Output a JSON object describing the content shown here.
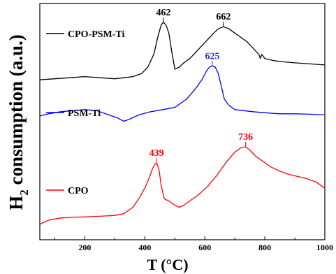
{
  "chart_data": {
    "type": "line",
    "xlabel": "T (°C)",
    "ylabel_main": "H",
    "ylabel_sub": "2",
    "ylabel_rest": " consumption (a.u.)",
    "xlim": [
      50,
      1000
    ],
    "xticks": [
      200,
      400,
      600,
      800,
      1000
    ],
    "xtick_labels": [
      "200",
      "400",
      "600",
      "800",
      "1000"
    ],
    "ylim": [
      0,
      100
    ],
    "series": [
      {
        "name": "CPO-PSM-Ti",
        "color": "#000000",
        "x": [
          50,
          100,
          150,
          200,
          250,
          300,
          330,
          360,
          390,
          410,
          430,
          445,
          455,
          462,
          470,
          480,
          490,
          500,
          515,
          530,
          550,
          570,
          590,
          610,
          630,
          645,
          662,
          680,
          700,
          720,
          740,
          760,
          780,
          785,
          790,
          800,
          830,
          860,
          900,
          950,
          1000
        ],
        "y": [
          70,
          70.5,
          71,
          71.5,
          71,
          70.5,
          71,
          71.5,
          73,
          76,
          82,
          91,
          96,
          97,
          96,
          92,
          83,
          75,
          76,
          78,
          80,
          83,
          86,
          89,
          92,
          94,
          95,
          94,
          92,
          90,
          88,
          85,
          82,
          80,
          82,
          80,
          79,
          78.5,
          78,
          77.5,
          77
        ]
      },
      {
        "name": "PSM-Ti",
        "color": "#0000ff",
        "x": [
          50,
          80,
          120,
          160,
          200,
          240,
          280,
          310,
          330,
          350,
          380,
          420,
          460,
          500,
          540,
          570,
          590,
          605,
          615,
          625,
          635,
          645,
          655,
          665,
          680,
          700,
          730,
          760,
          800,
          850,
          900,
          950,
          1000
        ],
        "y": [
          53,
          54,
          55,
          55.5,
          56,
          55.5,
          53.5,
          52,
          50.5,
          51.5,
          53.5,
          55,
          56,
          57,
          61,
          66,
          70,
          74,
          76,
          76.5,
          76,
          73,
          67,
          61,
          58,
          56,
          55.5,
          55,
          54.5,
          54,
          54,
          53.8,
          53.5
        ]
      },
      {
        "name": "CPO",
        "color": "#ff0000",
        "x": [
          50,
          80,
          120,
          160,
          200,
          250,
          300,
          330,
          360,
          380,
          400,
          415,
          425,
          432,
          439,
          447,
          455,
          465,
          480,
          500,
          515,
          530,
          550,
          580,
          610,
          640,
          670,
          700,
          720,
          736,
          750,
          770,
          790,
          820,
          850,
          880,
          910,
          940,
          970,
          1000
        ],
        "y": [
          2,
          4,
          5,
          5.3,
          5.5,
          5.8,
          6.2,
          7,
          10,
          14,
          19,
          24,
          28,
          30,
          31,
          28,
          20,
          14,
          13,
          11,
          10,
          11,
          13,
          16,
          20,
          25,
          31,
          36,
          38,
          38.5,
          37,
          34,
          32,
          29,
          27,
          25.5,
          24.5,
          23.5,
          22,
          19
        ]
      }
    ],
    "legend": [
      {
        "label": "CPO-PSM-Ti",
        "series": 0
      },
      {
        "label": "PSM-Ti",
        "series": 1
      },
      {
        "label": "CPO",
        "series": 2
      }
    ],
    "annotations": [
      {
        "text": "462",
        "x": 462,
        "y": 97,
        "color": "#000000"
      },
      {
        "text": "662",
        "x": 662,
        "y": 95,
        "color": "#000000"
      },
      {
        "text": "625",
        "x": 625,
        "y": 76.5,
        "color": "#3333cc"
      },
      {
        "text": "439",
        "x": 439,
        "y": 31,
        "color": "#ff0000"
      },
      {
        "text": "736",
        "x": 736,
        "y": 38.5,
        "color": "#ff0000"
      }
    ]
  }
}
